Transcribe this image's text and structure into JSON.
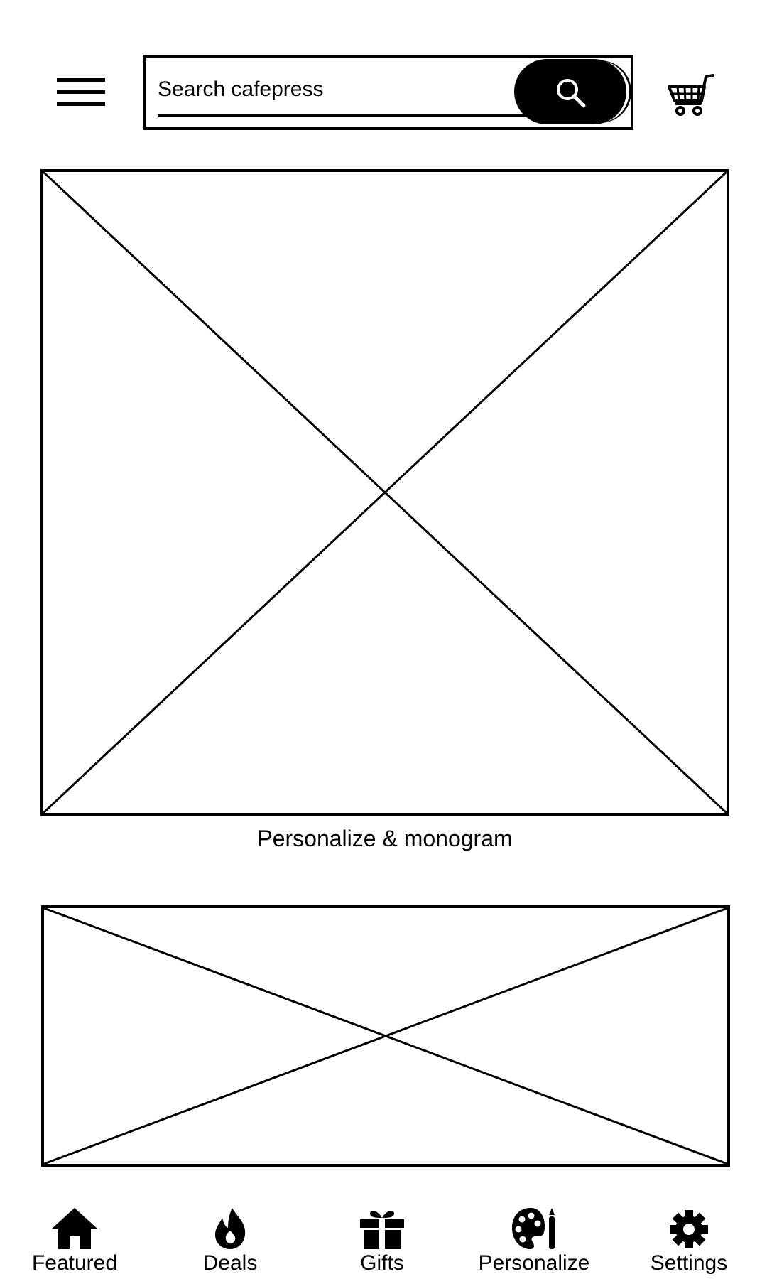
{
  "header": {
    "menu_icon": "hamburger-menu-icon",
    "search": {
      "placeholder": "Search cafepress",
      "value": "",
      "button_icon": "search-icon"
    },
    "cart_icon": "shopping-cart-icon"
  },
  "main": {
    "featured_caption": "Personalize & monogram"
  },
  "bottom_nav": {
    "items": [
      {
        "label": "Featured",
        "icon": "home-icon"
      },
      {
        "label": "Deals",
        "icon": "flame-icon"
      },
      {
        "label": "Gifts",
        "icon": "gift-icon"
      },
      {
        "label": "Personalize",
        "icon": "palette-icon"
      },
      {
        "label": "Settings",
        "icon": "gear-icon"
      }
    ]
  }
}
